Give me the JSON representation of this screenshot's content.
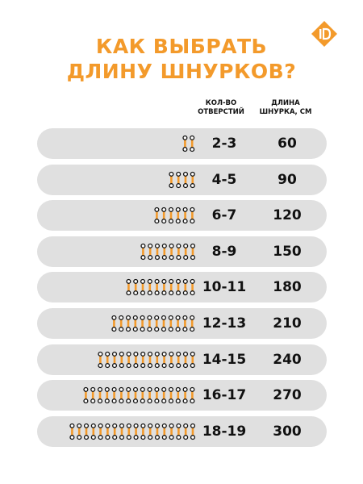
{
  "title": {
    "line1": "КАК ВЫБРАТЬ",
    "line2": "ДЛИНУ ШНУРКОВ?"
  },
  "brand": {
    "logo_icon": "brand-logo-icon",
    "color": "#f39a2b"
  },
  "columns": {
    "holes": [
      "КОЛ-ВО",
      "ОТВЕРСТИЙ"
    ],
    "length": [
      "ДЛИНА",
      "ШНУРКА, СМ"
    ]
  },
  "colors": {
    "accent": "#f39a2b",
    "row_bg": "#e0e0e0",
    "text": "#111111"
  },
  "rows": [
    {
      "pairs": 2,
      "holes": "2-3",
      "length": "60"
    },
    {
      "pairs": 4,
      "holes": "4-5",
      "length": "90"
    },
    {
      "pairs": 6,
      "holes": "6-7",
      "length": "120"
    },
    {
      "pairs": 8,
      "holes": "8-9",
      "length": "150"
    },
    {
      "pairs": 10,
      "holes": "10-11",
      "length": "180"
    },
    {
      "pairs": 12,
      "holes": "12-13",
      "length": "210"
    },
    {
      "pairs": 14,
      "holes": "14-15",
      "length": "240"
    },
    {
      "pairs": 16,
      "holes": "16-17",
      "length": "270"
    },
    {
      "pairs": 18,
      "holes": "18-19",
      "length": "300"
    }
  ]
}
